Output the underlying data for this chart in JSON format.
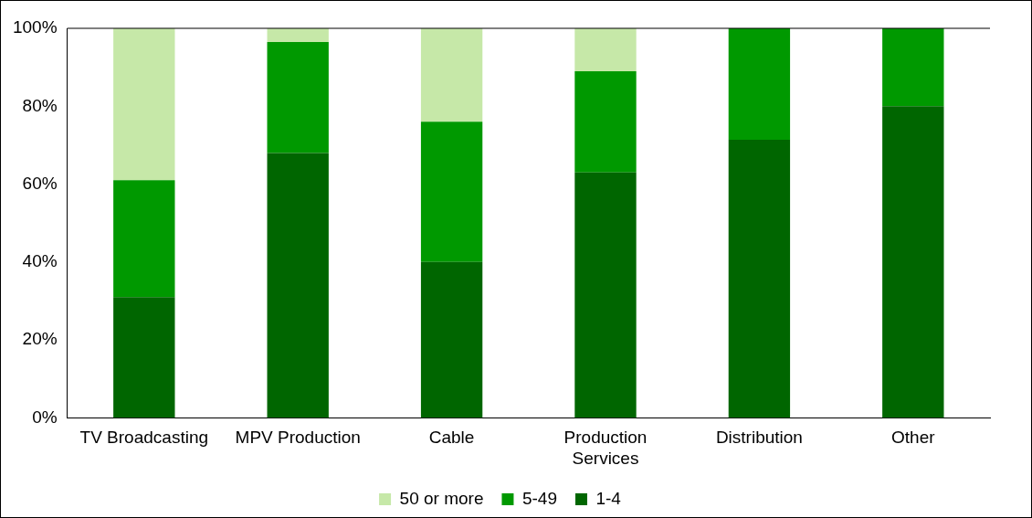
{
  "chart_data": {
    "type": "bar",
    "stacked": true,
    "categories": [
      "TV Broadcasting",
      "MPV Production",
      "Cable",
      "Production Services",
      "Distribution",
      "Other"
    ],
    "series": [
      {
        "name": "1-4",
        "color": "#006600",
        "values": [
          31,
          68,
          40,
          63,
          71.4,
          80
        ]
      },
      {
        "name": "5-49",
        "color": "#009900",
        "values": [
          30,
          28.5,
          36,
          26,
          28.6,
          20
        ]
      },
      {
        "name": "50 or more",
        "color": "#c6e8a8",
        "values": [
          39,
          3.5,
          24,
          11,
          0,
          0
        ]
      }
    ],
    "ylim": [
      0,
      100
    ],
    "yticks": [
      {
        "value": 0,
        "label": "0%"
      },
      {
        "value": 20,
        "label": "20%"
      },
      {
        "value": 40,
        "label": "40%"
      },
      {
        "value": 60,
        "label": "60%"
      },
      {
        "value": 80,
        "label": "80%"
      },
      {
        "value": 100,
        "label": "100%"
      }
    ],
    "grid": false,
    "legend": "bottom"
  }
}
